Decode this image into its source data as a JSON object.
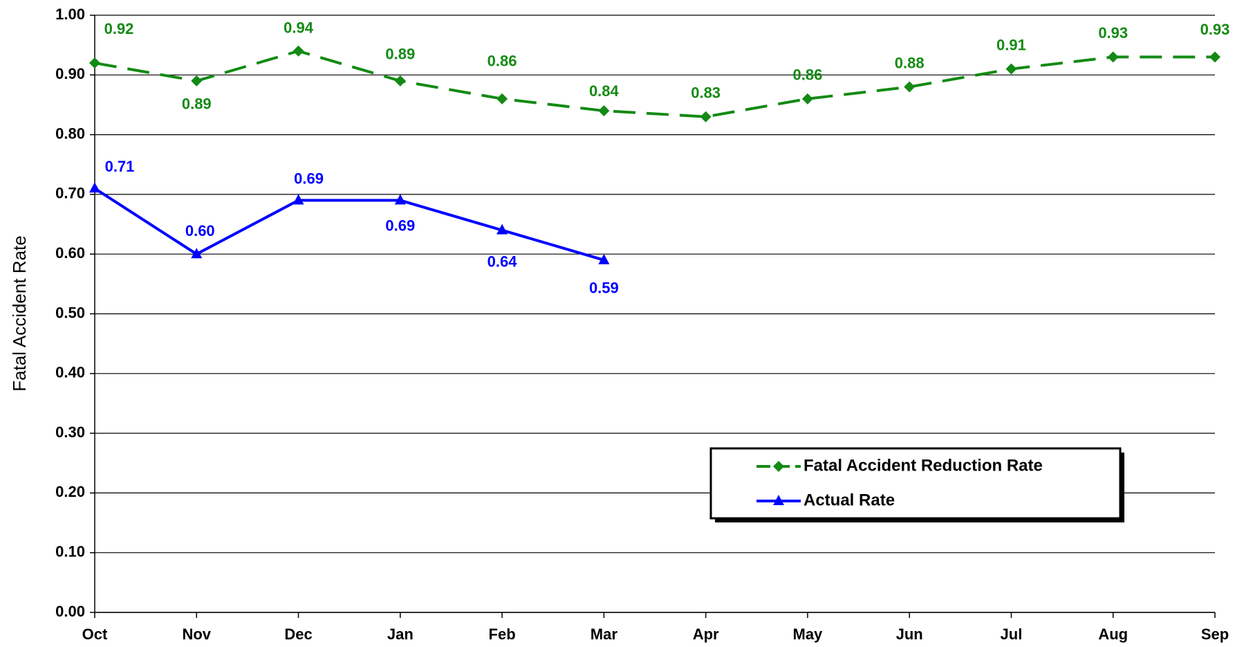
{
  "chart_data": {
    "type": "line",
    "y_label": "Fatal Accident Rate",
    "categories": [
      "Oct",
      "Nov",
      "Dec",
      "Jan",
      "Feb",
      "Mar",
      "Apr",
      "May",
      "Jun",
      "Jul",
      "Aug",
      "Sep"
    ],
    "series": [
      {
        "name": "Fatal Accident Reduction Rate",
        "color": "#138a13",
        "dashed": true,
        "marker": "diamond",
        "values": [
          0.92,
          0.89,
          0.94,
          0.89,
          0.86,
          0.84,
          0.83,
          0.86,
          0.88,
          0.91,
          0.93,
          0.93
        ],
        "value_labels": [
          "0.92",
          "0.89",
          "0.94",
          "0.89",
          "0.86",
          "0.84",
          "0.83",
          "0.86",
          "0.88",
          "0.91",
          "0.93",
          "0.93"
        ]
      },
      {
        "name": "Actual Rate",
        "color": "#0000ff",
        "dashed": false,
        "marker": "triangle",
        "values": [
          0.71,
          0.6,
          0.69,
          0.69,
          0.64,
          0.59,
          null,
          null,
          null,
          null,
          null,
          null
        ],
        "value_labels": [
          "0.71",
          "0.60",
          "0.69",
          "0.69",
          "0.64",
          "0.59",
          null,
          null,
          null,
          null,
          null,
          null
        ]
      }
    ],
    "ylim": [
      0,
      1
    ],
    "yticks": [
      {
        "value": 0,
        "label": "0.00"
      },
      {
        "value": 0.1,
        "label": "0.10"
      },
      {
        "value": 0.2,
        "label": "0.20"
      },
      {
        "value": 0.3,
        "label": "0.30"
      },
      {
        "value": 0.4,
        "label": "0.40"
      },
      {
        "value": 0.5,
        "label": "0.50"
      },
      {
        "value": 0.6,
        "label": "0.60"
      },
      {
        "value": 0.7,
        "label": "0.70"
      },
      {
        "value": 0.8,
        "label": "0.80"
      },
      {
        "value": 0.9,
        "label": "0.90"
      },
      {
        "value": 1,
        "label": "1.00"
      }
    ],
    "grid": true
  }
}
